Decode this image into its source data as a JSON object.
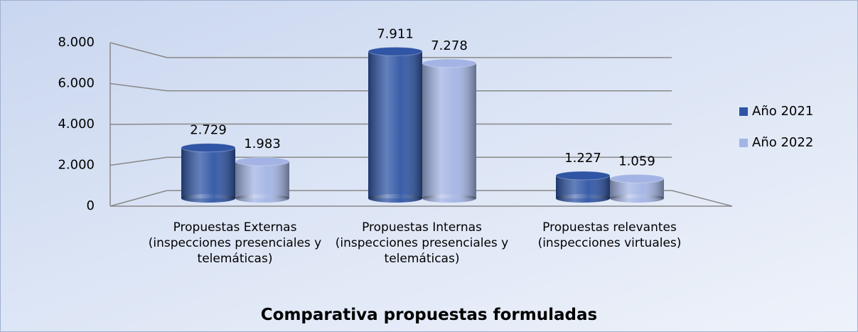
{
  "chart_data": {
    "type": "bar3d",
    "title": "Comparativa propuestas formuladas",
    "categories": [
      "Propuestas Externas (inspecciones presenciales y telemáticas)",
      "Propuestas Internas (inspecciones presenciales y telemáticas)",
      "Propuestas relevantes (inspecciones virtuales)"
    ],
    "series": [
      {
        "name": "Año 2021",
        "color": "#2f55a4",
        "values": [
          2729,
          7911,
          1227
        ],
        "value_labels": [
          "2.729",
          "7.911",
          "1.227"
        ]
      },
      {
        "name": "Año 2022",
        "color": "#a3b4e4",
        "values": [
          1983,
          7278,
          1059
        ],
        "value_labels": [
          "1.983",
          "7.278",
          "1.059"
        ]
      }
    ],
    "ylim": [
      0,
      8000
    ],
    "yticks": [
      0,
      {
        "value": 2000,
        "label": "2.000"
      },
      {
        "value": 4000,
        "label": "4.000"
      },
      {
        "value": 6000,
        "label": "6.000"
      },
      {
        "value": 8000,
        "label": "8.000"
      }
    ],
    "grid": true,
    "legend": "right"
  }
}
